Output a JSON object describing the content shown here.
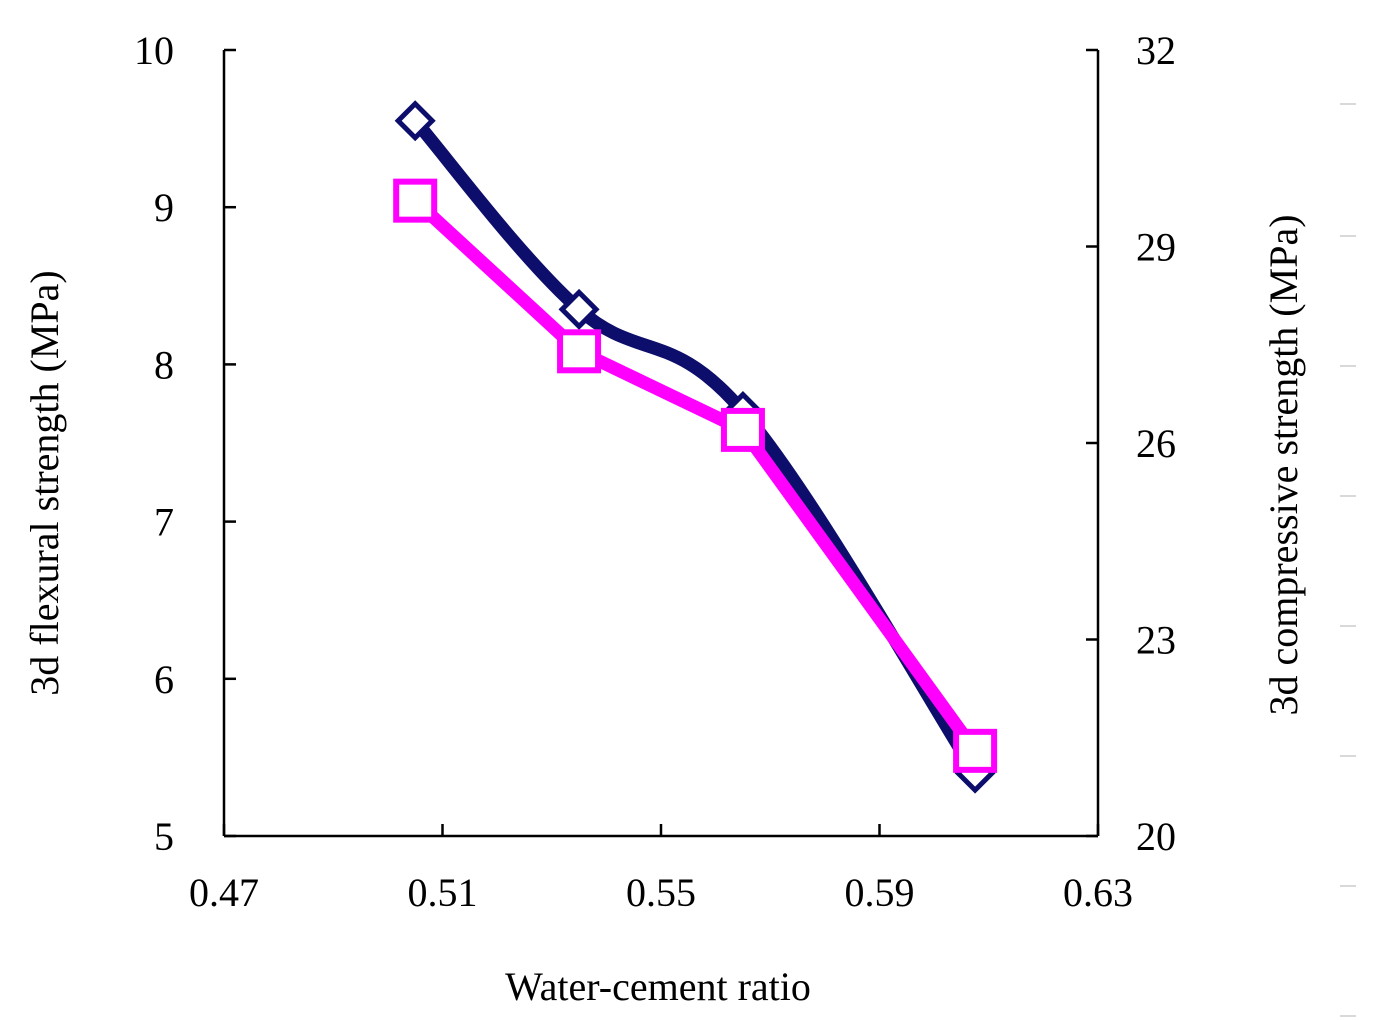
{
  "chart_data": {
    "type": "line",
    "title": "",
    "xlabel": "Water-cement ratio",
    "ylabel": "3d flexural strength (MPa)",
    "y2label": "3d compressive strength (MPa)",
    "xlim": [
      0.47,
      0.63
    ],
    "ylim": [
      5,
      10
    ],
    "y2lim": [
      20,
      32
    ],
    "x_ticks": [
      "0.47",
      "0.51",
      "0.55",
      "0.59",
      "0.63"
    ],
    "y_ticks": [
      "5",
      "6",
      "7",
      "8",
      "9",
      "10"
    ],
    "y2_ticks": [
      "20",
      "23",
      "26",
      "29",
      "32"
    ],
    "grid": false,
    "legend": "none",
    "series": [
      {
        "name": "3d flexural strength",
        "axis": "left",
        "color": "#0d0d6b",
        "marker": "diamond",
        "smooth": true,
        "x": [
          0.505,
          0.535,
          0.565,
          0.6075
        ],
        "values": [
          9.55,
          8.35,
          7.7,
          5.4
        ]
      },
      {
        "name": "3d compressive strength",
        "axis": "right",
        "color": "#ff00ff",
        "marker": "square",
        "smooth": false,
        "x": [
          0.505,
          0.535,
          0.565,
          0.6075
        ],
        "values": [
          29.7,
          27.4,
          26.2,
          21.3
        ]
      }
    ]
  }
}
